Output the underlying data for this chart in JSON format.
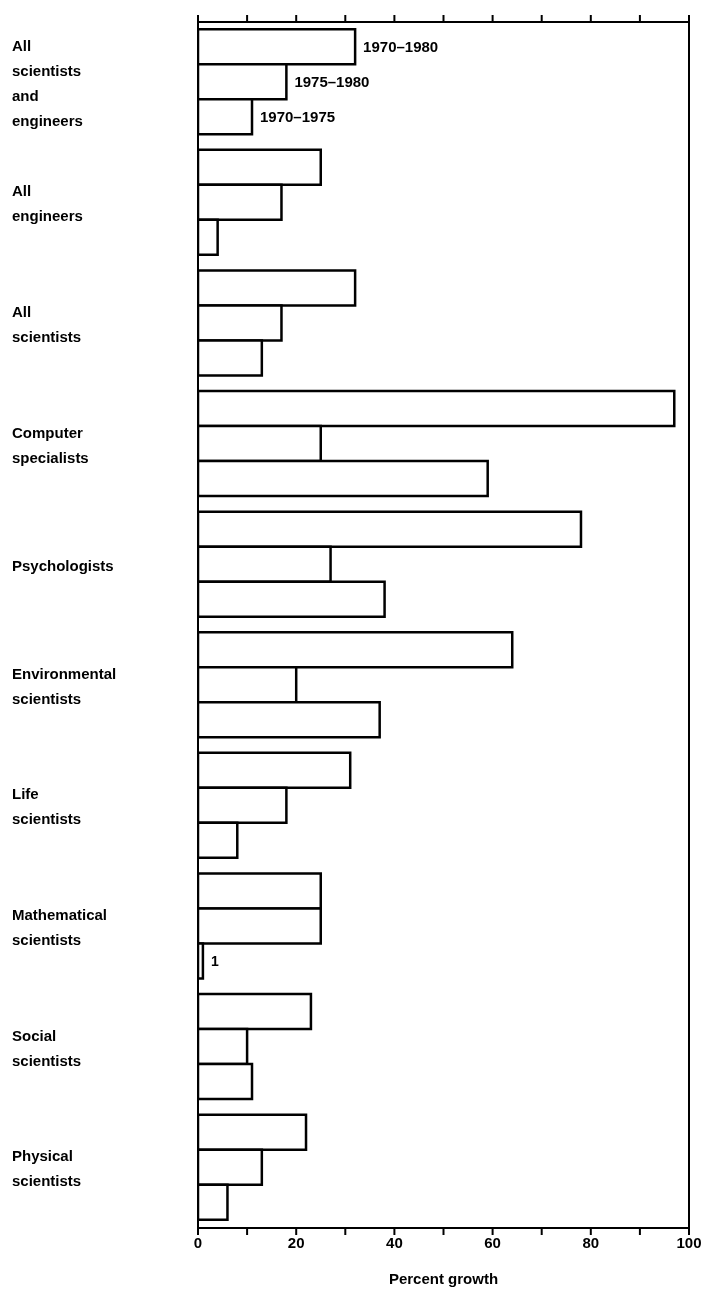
{
  "chart_data": {
    "type": "bar",
    "orientation": "horizontal",
    "xlabel": "Percent growth",
    "categories": [
      "All scientists and engineers",
      "All engineers",
      "All scientists",
      "Computer specialists",
      "Psychologists",
      "Environmental scientists",
      "Life scientists",
      "Mathematical scientists",
      "Social scientists",
      "Physical scientists"
    ],
    "series": [
      {
        "name": "1970–1980",
        "color": "#ffffff",
        "values": [
          32,
          25,
          32,
          97,
          78,
          64,
          31,
          25,
          23,
          22
        ]
      },
      {
        "name": "1975–1980",
        "color": "#ffffff",
        "values": [
          18,
          17,
          17,
          25,
          27,
          20,
          18,
          25,
          10,
          13
        ]
      },
      {
        "name": "1970–1975",
        "color": "#ffffff",
        "values": [
          11,
          4,
          13,
          59,
          38,
          37,
          8,
          1,
          11,
          6
        ],
        "value_labels": [
          null,
          null,
          null,
          null,
          null,
          null,
          null,
          "1",
          null,
          null
        ]
      }
    ],
    "xlim": [
      0,
      100
    ],
    "xticks": [
      0,
      {
        "value": 10,
        "label": null
      },
      20,
      {
        "value": 30,
        "label": null
      },
      40,
      {
        "value": 50,
        "label": null
      },
      60,
      {
        "value": 70,
        "label": null
      },
      80,
      {
        "value": 90,
        "label": null
      },
      100
    ],
    "grid": false,
    "legend": "top"
  }
}
